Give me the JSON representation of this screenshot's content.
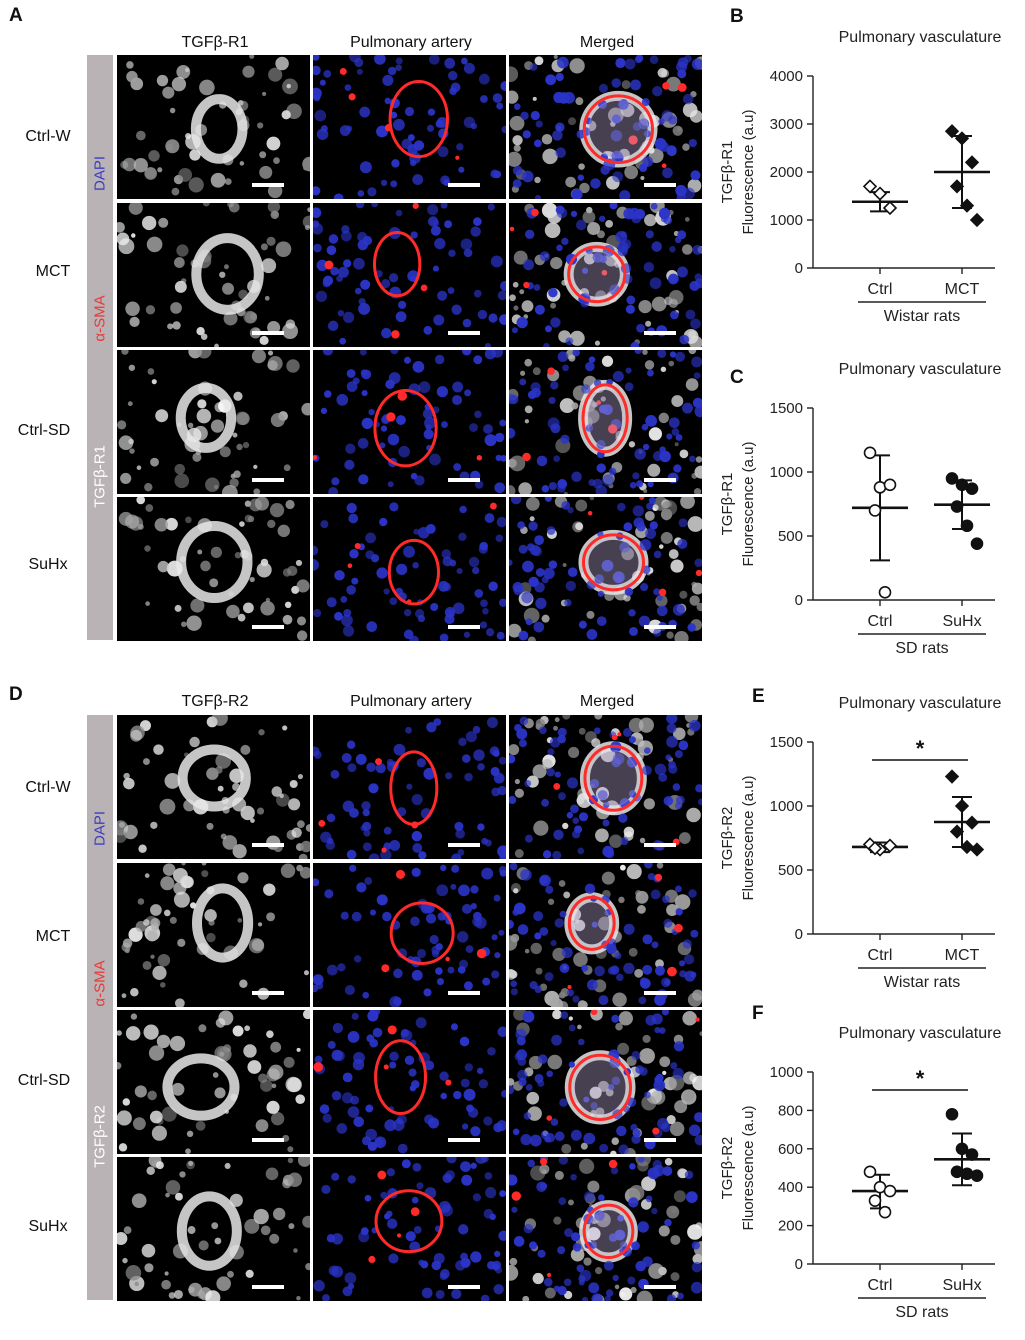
{
  "figure": {
    "top": {
      "letter": "A",
      "column_headers": [
        "TGFβ-R1",
        "Pulmonary artery",
        "Merged"
      ],
      "row_labels": [
        "Ctrl-W",
        "MCT",
        "Ctrl-SD",
        "SuHx"
      ],
      "stains": [
        {
          "text": "DAPI",
          "color": "#3b3fbf"
        },
        {
          "text": "α-SMA",
          "color": "#e83a3a"
        },
        {
          "text": "TGFβ-R1",
          "color": "#ffffff"
        }
      ]
    },
    "bottom": {
      "letter": "D",
      "column_headers": [
        "TGFβ-R2",
        "Pulmonary artery",
        "Merged"
      ],
      "row_labels": [
        "Ctrl-W",
        "MCT",
        "Ctrl-SD",
        "SuHx"
      ],
      "stains": [
        {
          "text": "DAPI",
          "color": "#3b3fbf"
        },
        {
          "text": "α-SMA",
          "color": "#e83a3a"
        },
        {
          "text": "TGFβ-R2",
          "color": "#ffffff"
        }
      ]
    }
  },
  "colors": {
    "stain_bar": "#b9b3b5",
    "dapi": "#2b34c8",
    "sma": "#ff2a2a",
    "tgf": "#ffffff"
  },
  "chart_data": [
    {
      "panel": "B",
      "type": "scatter",
      "title": "Pulmonary vasculature",
      "ylabel_line1": "TGFβ-R1",
      "ylabel_line2": "Fluorescence (a.u)",
      "ylim": [
        0,
        4000
      ],
      "yticks": [
        "0",
        "1000",
        "2000",
        "3000",
        "4000"
      ],
      "categories": [
        "Ctrl",
        "MCT"
      ],
      "group_label": "Wistar rats",
      "marker": "diamond",
      "series": [
        {
          "category": "Ctrl",
          "filled": false,
          "points": [
            1700,
            1550,
            1250
          ],
          "mean": 1380,
          "sd_low": 1180,
          "sd_high": 1580
        },
        {
          "category": "MCT",
          "filled": true,
          "points": [
            2850,
            2700,
            2200,
            1700,
            1300,
            1000
          ],
          "mean": 2000,
          "sd_low": 1250,
          "sd_high": 2750
        }
      ],
      "significance": ""
    },
    {
      "panel": "C",
      "type": "scatter",
      "title": "Pulmonary vasculature",
      "ylabel_line1": "TGFβ-R1",
      "ylabel_line2": "Fluorescence (a.u)",
      "ylim": [
        0,
        1500
      ],
      "yticks": [
        "0",
        "500",
        "1000",
        "1500"
      ],
      "categories": [
        "Ctrl",
        "SuHx"
      ],
      "group_label": "SD rats",
      "marker": "circle",
      "series": [
        {
          "category": "Ctrl",
          "filled": false,
          "points": [
            1150,
            880,
            900,
            700,
            60
          ],
          "mean": 720,
          "sd_low": 310,
          "sd_high": 1130
        },
        {
          "category": "SuHx",
          "filled": true,
          "points": [
            950,
            900,
            870,
            730,
            580,
            440
          ],
          "mean": 745,
          "sd_low": 555,
          "sd_high": 935
        }
      ],
      "significance": ""
    },
    {
      "panel": "E",
      "type": "scatter",
      "title": "Pulmonary vasculature",
      "ylabel_line1": "TGFβ-R2",
      "ylabel_line2": "Fluorescence (a.u)",
      "ylim": [
        0,
        1500
      ],
      "yticks": [
        "0",
        "500",
        "1000",
        "1500"
      ],
      "categories": [
        "Ctrl",
        "MCT"
      ],
      "group_label": "Wistar rats",
      "marker": "diamond",
      "series": [
        {
          "category": "Ctrl",
          "filled": false,
          "points": [
            700,
            660,
            690,
            670
          ],
          "mean": 680,
          "sd_low": 640,
          "sd_high": 715
        },
        {
          "category": "MCT",
          "filled": true,
          "points": [
            1230,
            1000,
            870,
            800,
            680,
            660
          ],
          "mean": 875,
          "sd_low": 680,
          "sd_high": 1070
        }
      ],
      "significance": "*"
    },
    {
      "panel": "F",
      "type": "scatter",
      "title": "Pulmonary vasculature",
      "ylabel_line1": "TGFβ-R2",
      "ylabel_line2": "Fluorescence (a.u)",
      "ylim": [
        0,
        1000
      ],
      "yticks": [
        "0",
        "200",
        "400",
        "600",
        "800",
        "1000"
      ],
      "categories": [
        "Ctrl",
        "SuHx"
      ],
      "group_label": "SD rats",
      "marker": "circle",
      "series": [
        {
          "category": "Ctrl",
          "filled": false,
          "points": [
            480,
            400,
            380,
            330,
            270
          ],
          "mean": 380,
          "sd_low": 290,
          "sd_high": 465
        },
        {
          "category": "SuHx",
          "filled": true,
          "points": [
            780,
            600,
            570,
            480,
            470,
            460
          ],
          "mean": 545,
          "sd_low": 410,
          "sd_high": 680
        }
      ],
      "significance": "*"
    }
  ]
}
